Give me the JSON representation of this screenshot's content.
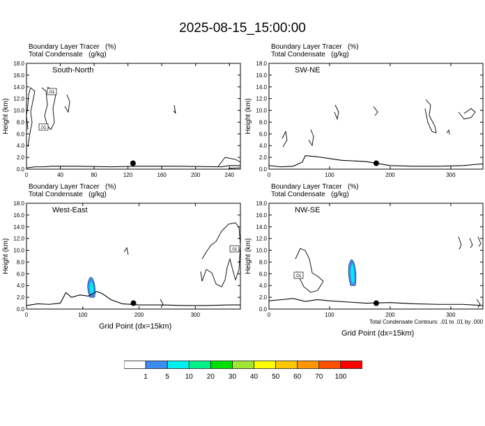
{
  "title": "2025-08-15_15:00:00",
  "panels": [
    {
      "header_line1": "Boundary Layer Tracer   (%)",
      "header_line2": "Total Condensate   (g/kg)",
      "label": "South-North",
      "ylabel": "Height (km)",
      "xlabel": "",
      "x_ticks": [
        "0",
        "40",
        "80",
        "120",
        "160",
        "200",
        "240"
      ],
      "y_ticks": [
        "0.0",
        "2.0",
        "4.0",
        "6.0",
        "8.0",
        "10.0",
        "12.0",
        "14.0",
        "16.0",
        "18.0"
      ],
      "contour_labels": [
        ".01",
        ".01"
      ]
    },
    {
      "header_line1": "Boundary Layer Tracer   (%)",
      "header_line2": "Total Condensate   (g/kg)",
      "label": "SW-NE",
      "ylabel": "Height (km)",
      "xlabel": "",
      "x_ticks": [
        "0",
        "100",
        "200",
        "300"
      ],
      "y_ticks": [
        "0.0",
        "2.0",
        "4.0",
        "6.0",
        "8.0",
        "10.0",
        "12.0",
        "14.0",
        "16.0",
        "18.0"
      ],
      "contour_labels": []
    },
    {
      "header_line1": "Boundary Layer Tracer   (%)",
      "header_line2": "Total Condensate   (g/kg)",
      "label": "West-East",
      "ylabel": "Height (km)",
      "xlabel": "Grid Point (dx=15km)",
      "x_ticks": [
        "0",
        "100",
        "200",
        "300"
      ],
      "y_ticks": [
        "0.0",
        "2.0",
        "4.0",
        "6.0",
        "8.0",
        "10.0",
        "12.0",
        "14.0",
        "16.0",
        "18.0"
      ],
      "contour_labels": [
        ".01"
      ]
    },
    {
      "header_line1": "Boundary Layer Tracer   (%)",
      "header_line2": "Total Condensate   (g/kg)",
      "label": "NW-SE",
      "ylabel": "Height (km)",
      "xlabel": "Grid Point (dx=15km)",
      "x_ticks": [
        "0",
        "100",
        "200",
        "300"
      ],
      "y_ticks": [
        "0.0",
        "2.0",
        "4.0",
        "6.0",
        "8.0",
        "10.0",
        "12.0",
        "14.0",
        "16.0",
        "18.0"
      ],
      "contour_labels": [
        ".01"
      ]
    }
  ],
  "contour_note": "Total Condensate Contours: .01 to .01 by .000",
  "colorbar": {
    "labels": [
      "1",
      "5",
      "10",
      "20",
      "30",
      "40",
      "50",
      "60",
      "70",
      "100"
    ],
    "colors": [
      "#ffffff",
      "#3c8cf0",
      "#00f0f0",
      "#00f08c",
      "#00e000",
      "#a0e632",
      "#ffff00",
      "#ffc800",
      "#ff9600",
      "#ff5000",
      "#ff0000"
    ]
  },
  "chart_data": [
    {
      "type": "contour",
      "title": "South-North",
      "xlim": [
        0,
        253
      ],
      "ylim": [
        0,
        18
      ],
      "terrain": {
        "x": [
          0,
          10,
          20,
          30,
          60,
          100,
          130,
          180,
          230,
          240,
          253
        ],
        "y": [
          0.2,
          0.4,
          0.4,
          0.5,
          0.5,
          0.4,
          0.5,
          0.5,
          0.4,
          0.6,
          0.6
        ]
      },
      "marker": {
        "x": 126,
        "y": 1.0
      },
      "shading": []
    },
    {
      "type": "contour",
      "title": "SW-NE",
      "xlim": [
        0,
        353
      ],
      "ylim": [
        0,
        18
      ],
      "terrain": {
        "x": [
          0,
          20,
          40,
          55,
          60,
          80,
          100,
          120,
          160,
          200,
          240,
          280,
          320,
          340,
          353
        ],
        "y": [
          0.6,
          0.4,
          0.5,
          1.2,
          2.3,
          2.1,
          1.8,
          1.5,
          1.3,
          0.6,
          0.5,
          0.5,
          0.6,
          0.8,
          0.9
        ]
      },
      "marker": {
        "x": 177,
        "y": 1.0
      },
      "shading": []
    },
    {
      "type": "contour",
      "title": "West-East",
      "xlim": [
        0,
        380
      ],
      "ylim": [
        0,
        18
      ],
      "terrain": {
        "x": [
          0,
          20,
          40,
          60,
          70,
          80,
          95,
          110,
          125,
          135,
          150,
          170,
          200,
          240,
          280,
          320,
          360,
          380
        ],
        "y": [
          0.6,
          0.9,
          0.8,
          1.0,
          2.8,
          2.0,
          2.4,
          2.2,
          3.0,
          2.6,
          1.6,
          0.9,
          0.7,
          0.7,
          0.6,
          0.6,
          0.7,
          0.7
        ]
      },
      "marker": {
        "x": 190,
        "y": 1.0
      },
      "shading": [
        {
          "x_center": 116,
          "y_bottom": 2.0,
          "y_top": 5.4,
          "level": "5"
        }
      ]
    },
    {
      "type": "contour",
      "title": "NW-SE",
      "xlim": [
        0,
        353
      ],
      "ylim": [
        0,
        18
      ],
      "terrain": {
        "x": [
          0,
          20,
          40,
          60,
          80,
          100,
          130,
          160,
          200,
          240,
          280,
          320,
          353
        ],
        "y": [
          1.4,
          1.6,
          1.8,
          1.3,
          1.6,
          1.4,
          1.2,
          1.0,
          1.1,
          0.9,
          0.8,
          0.8,
          0.6
        ]
      },
      "marker": {
        "x": 177,
        "y": 1.0
      },
      "shading": [
        {
          "x_center": 138,
          "y_bottom": 4.0,
          "y_top": 8.4,
          "level": "5"
        }
      ]
    }
  ]
}
